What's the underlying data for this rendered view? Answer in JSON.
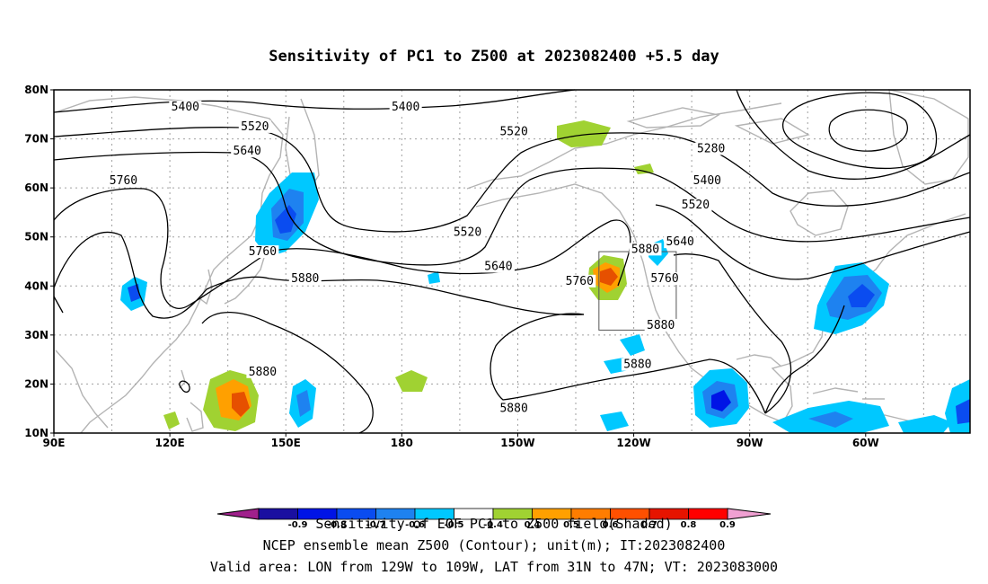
{
  "title": "Sensitivity of PC1 to Z500 at 2023082400 +5.5 day",
  "map": {
    "lat_ticks": [
      "80N",
      "70N",
      "60N",
      "50N",
      "40N",
      "30N",
      "20N",
      "10N"
    ],
    "lon_ticks": [
      "90E",
      "120E",
      "150E",
      "180",
      "150W",
      "120W",
      "90W",
      "60W"
    ],
    "lon_range": [
      90,
      327
    ],
    "lat_range": [
      10,
      80
    ],
    "contour_labels": [
      {
        "text": "5400",
        "lon": 124,
        "lat": 76.5
      },
      {
        "text": "5400",
        "lon": 181,
        "lat": 76.5
      },
      {
        "text": "5400",
        "lon": 259,
        "lat": 61.5
      },
      {
        "text": "5280",
        "lon": 260,
        "lat": 68
      },
      {
        "text": "5520",
        "lon": 142,
        "lat": 72.5
      },
      {
        "text": "5520",
        "lon": 209,
        "lat": 71.5
      },
      {
        "text": "5520",
        "lon": 197,
        "lat": 51
      },
      {
        "text": "5520",
        "lon": 256,
        "lat": 56.5
      },
      {
        "text": "5640",
        "lon": 140,
        "lat": 67.5
      },
      {
        "text": "5640",
        "lon": 205,
        "lat": 44
      },
      {
        "text": "5640",
        "lon": 252,
        "lat": 49
      },
      {
        "text": "5760",
        "lon": 108,
        "lat": 61.5
      },
      {
        "text": "5760",
        "lon": 144,
        "lat": 47
      },
      {
        "text": "5760",
        "lon": 226,
        "lat": 41
      },
      {
        "text": "5760",
        "lon": 248,
        "lat": 41.5
      },
      {
        "text": "5880",
        "lon": 155,
        "lat": 41.5
      },
      {
        "text": "5880",
        "lon": 243,
        "lat": 47.5
      },
      {
        "text": "5880",
        "lon": 247,
        "lat": 32
      },
      {
        "text": "5880",
        "lon": 241,
        "lat": 24
      },
      {
        "text": "5880",
        "lon": 209,
        "lat": 15
      },
      {
        "text": "5880",
        "lon": 144,
        "lat": 22.5
      }
    ],
    "valid_box": {
      "lon_min": 231,
      "lon_max": 251,
      "lat_min": 31,
      "lat_max": 47
    },
    "shading_colors": {
      "neg": "#1e64ff",
      "neg_light": "#00c8ff",
      "pos": "#a0d232",
      "pos_mid": "#ffa000",
      "pos_high": "#e65000"
    }
  },
  "colorbar": {
    "colors": [
      "#a0208c",
      "#1a0fa0",
      "#0014e6",
      "#0a4cf0",
      "#1e82f0",
      "#00c8ff",
      "#ffffff",
      "#a0d232",
      "#ffa000",
      "#ff7d00",
      "#ff5000",
      "#e61400",
      "#ff0000",
      "#f0a0d2"
    ],
    "labels": [
      "-0.9",
      "-0.8",
      "-0.7",
      "-0.6",
      "-0.5",
      "-0.4",
      "0.4",
      "0.5",
      "0.6",
      "0.7",
      "0.8",
      "0.9"
    ]
  },
  "footer": {
    "line1": "Sensitivity of EOF PC1 to Z500 field(Shaded)",
    "line2": "NCEP ensemble mean Z500 (Contour); unit(m); IT:2023082400",
    "line3": "Valid area: LON from 129W to 109W, LAT from 31N to 47N; VT: 2023083000"
  }
}
